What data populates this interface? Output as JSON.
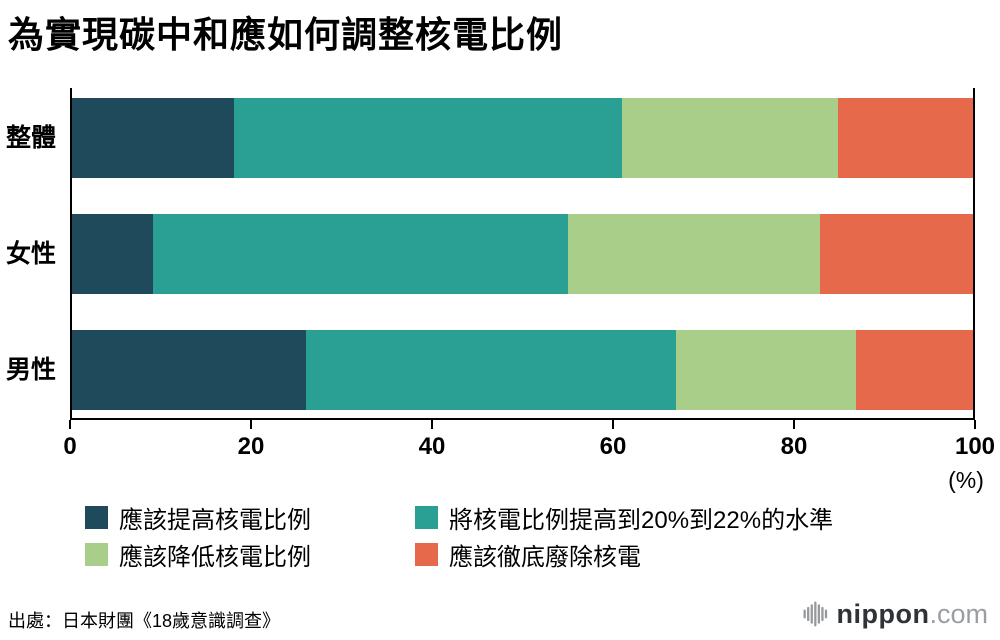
{
  "title": "為實現碳中和應如何調整核電比例",
  "chart_data": {
    "type": "bar",
    "orientation": "horizontal",
    "stacked": true,
    "title": "為實現碳中和應如何調整核電比例",
    "categories": [
      "整體",
      "女性",
      "男性"
    ],
    "series": [
      {
        "name": "應該提高核電比例",
        "color": "#1f4a5c",
        "values": [
          18,
          9,
          26
        ]
      },
      {
        "name": "將核電比例提高到20%到22%的水準",
        "color": "#2aa094",
        "values": [
          43,
          46,
          41
        ]
      },
      {
        "name": "應該降低核電比例",
        "color": "#a9ce8a",
        "values": [
          24,
          28,
          20
        ]
      },
      {
        "name": "應該徹底廢除核電",
        "color": "#e5694a",
        "values": [
          15,
          17,
          13
        ]
      }
    ],
    "xlim": [
      0,
      100
    ],
    "x_ticks": [
      "0",
      "20",
      "40",
      "60",
      "80",
      "100"
    ],
    "x_unit": "(%)",
    "grid": false,
    "legend_position": "bottom"
  },
  "source": "出處：日本財團《18歲意識調查》",
  "logo": {
    "brand": "nippon",
    "domain": ".com",
    "icon_color": "#97999c"
  }
}
